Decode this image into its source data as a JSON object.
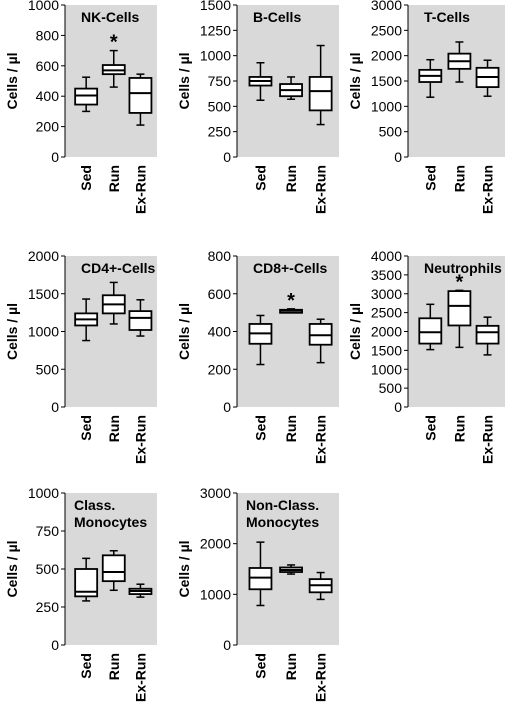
{
  "chart_data": [
    {
      "type": "box",
      "title": [
        "NK-Cells"
      ],
      "ylabel": "Cells / µl",
      "ylim": [
        0,
        1000
      ],
      "yticks": [
        0,
        200,
        400,
        600,
        800,
        1000
      ],
      "yticklabels": [
        "0",
        "200",
        "400",
        "600",
        "800",
        "1000"
      ],
      "categories": [
        "Sed",
        "Run",
        "Ex-Run"
      ],
      "boxes": [
        {
          "min": 300,
          "q1": 345,
          "median": 405,
          "q3": 450,
          "max": 525
        },
        {
          "min": 460,
          "q1": 545,
          "median": 570,
          "q3": 605,
          "max": 700
        },
        {
          "min": 210,
          "q1": 290,
          "median": 420,
          "q3": 520,
          "max": 545
        }
      ],
      "annotations": [
        "",
        "*",
        ""
      ],
      "grid": false
    },
    {
      "type": "box",
      "title": [
        "B-Cells"
      ],
      "ylabel": "Cells / µl",
      "ylim": [
        0,
        1500
      ],
      "yticks": [
        0,
        250,
        500,
        750,
        1000,
        1250,
        1500
      ],
      "yticklabels": [
        "0",
        "250",
        "500",
        "750",
        "1000",
        "1250",
        "1500"
      ],
      "categories": [
        "Sed",
        "Run",
        "Ex-Run"
      ],
      "boxes": [
        {
          "min": 560,
          "q1": 705,
          "median": 750,
          "q3": 790,
          "max": 930
        },
        {
          "min": 570,
          "q1": 600,
          "median": 660,
          "q3": 720,
          "max": 790
        },
        {
          "min": 320,
          "q1": 460,
          "median": 650,
          "q3": 790,
          "max": 1100
        }
      ],
      "annotations": [
        "",
        "",
        ""
      ],
      "grid": false
    },
    {
      "type": "box",
      "title": [
        "T-Cells"
      ],
      "ylabel": "Cells / µl",
      "ylim": [
        0,
        3000
      ],
      "yticks": [
        0,
        500,
        1000,
        1500,
        2000,
        2500,
        3000
      ],
      "yticklabels": [
        "0",
        "500",
        "1000",
        "1500",
        "2000",
        "2500",
        "3000"
      ],
      "categories": [
        "Sed",
        "Run",
        "Ex-Run"
      ],
      "boxes": [
        {
          "min": 1180,
          "q1": 1480,
          "median": 1600,
          "q3": 1720,
          "max": 1920
        },
        {
          "min": 1480,
          "q1": 1740,
          "median": 1890,
          "q3": 2040,
          "max": 2270
        },
        {
          "min": 1200,
          "q1": 1380,
          "median": 1580,
          "q3": 1760,
          "max": 1910
        }
      ],
      "annotations": [
        "",
        "",
        ""
      ],
      "grid": false
    },
    {
      "type": "box",
      "title": [
        "CD4+-Cells"
      ],
      "ylabel": "Cells / µl",
      "ylim": [
        0,
        2000
      ],
      "yticks": [
        0,
        500,
        1000,
        1500,
        2000
      ],
      "yticklabels": [
        "0",
        "500",
        "1000",
        "1500",
        "2000"
      ],
      "categories": [
        "Sed",
        "Run",
        "Ex-Run"
      ],
      "boxes": [
        {
          "min": 880,
          "q1": 1080,
          "median": 1160,
          "q3": 1240,
          "max": 1430
        },
        {
          "min": 1100,
          "q1": 1240,
          "median": 1360,
          "q3": 1480,
          "max": 1650
        },
        {
          "min": 940,
          "q1": 1020,
          "median": 1180,
          "q3": 1270,
          "max": 1420
        }
      ],
      "annotations": [
        "",
        "",
        ""
      ],
      "grid": false
    },
    {
      "type": "box",
      "title": [
        "CD8+-Cells"
      ],
      "ylabel": "Cells / µl",
      "ylim": [
        0,
        800
      ],
      "yticks": [
        0,
        200,
        400,
        600,
        800
      ],
      "yticklabels": [
        "0",
        "200",
        "400",
        "600",
        "800"
      ],
      "categories": [
        "Sed",
        "Run",
        "Ex-Run"
      ],
      "boxes": [
        {
          "min": 225,
          "q1": 335,
          "median": 390,
          "q3": 440,
          "max": 485
        },
        {
          "min": 500,
          "q1": 505,
          "median": 510,
          "q3": 515,
          "max": 520
        },
        {
          "min": 235,
          "q1": 330,
          "median": 380,
          "q3": 440,
          "max": 465
        }
      ],
      "annotations": [
        "",
        "*",
        ""
      ],
      "grid": false
    },
    {
      "type": "box",
      "title": [
        "Neutrophils"
      ],
      "ylabel": "Cells / µl",
      "ylim": [
        0,
        4000
      ],
      "yticks": [
        0,
        500,
        1000,
        1500,
        2000,
        2500,
        3000,
        3500,
        4000
      ],
      "yticklabels": [
        "0",
        "500",
        "1000",
        "1500",
        "2000",
        "2500",
        "3000",
        "3500",
        "4000"
      ],
      "categories": [
        "Sed",
        "Run",
        "Ex-Run"
      ],
      "boxes": [
        {
          "min": 1520,
          "q1": 1680,
          "median": 1980,
          "q3": 2350,
          "max": 2720
        },
        {
          "min": 1580,
          "q1": 2160,
          "median": 2680,
          "q3": 3070,
          "max": 3090
        },
        {
          "min": 1380,
          "q1": 1680,
          "median": 1980,
          "q3": 2150,
          "max": 2380
        }
      ],
      "annotations": [
        "",
        "*",
        ""
      ],
      "grid": false
    },
    {
      "type": "box",
      "title": [
        "Class.",
        "Monocytes"
      ],
      "ylabel": "Cells / µl",
      "ylim": [
        0,
        1000
      ],
      "yticks": [
        0,
        250,
        500,
        750,
        1000
      ],
      "yticklabels": [
        "0",
        "250",
        "500",
        "750",
        "1000"
      ],
      "categories": [
        "Sed",
        "Run",
        "Ex-Run"
      ],
      "boxes": [
        {
          "min": 290,
          "q1": 320,
          "median": 350,
          "q3": 500,
          "max": 570
        },
        {
          "min": 360,
          "q1": 420,
          "median": 480,
          "q3": 590,
          "max": 620
        },
        {
          "min": 315,
          "q1": 335,
          "median": 355,
          "q3": 370,
          "max": 400
        }
      ],
      "annotations": [
        "",
        "",
        ""
      ],
      "grid": false
    },
    {
      "type": "box",
      "title": [
        "Non-Class.",
        "Monocytes"
      ],
      "ylabel": "Cells / µl",
      "ylim": [
        0,
        3000
      ],
      "yticks": [
        0,
        1000,
        2000,
        3000
      ],
      "yticklabels": [
        "0",
        "1000",
        "2000",
        "3000"
      ],
      "categories": [
        "Sed",
        "Run",
        "Ex-Run"
      ],
      "boxes": [
        {
          "min": 780,
          "q1": 1100,
          "median": 1330,
          "q3": 1520,
          "max": 2030
        },
        {
          "min": 1400,
          "q1": 1440,
          "median": 1480,
          "q3": 1530,
          "max": 1580
        },
        {
          "min": 900,
          "q1": 1040,
          "median": 1180,
          "q3": 1300,
          "max": 1430
        }
      ],
      "annotations": [
        "",
        "",
        ""
      ],
      "grid": false
    }
  ]
}
